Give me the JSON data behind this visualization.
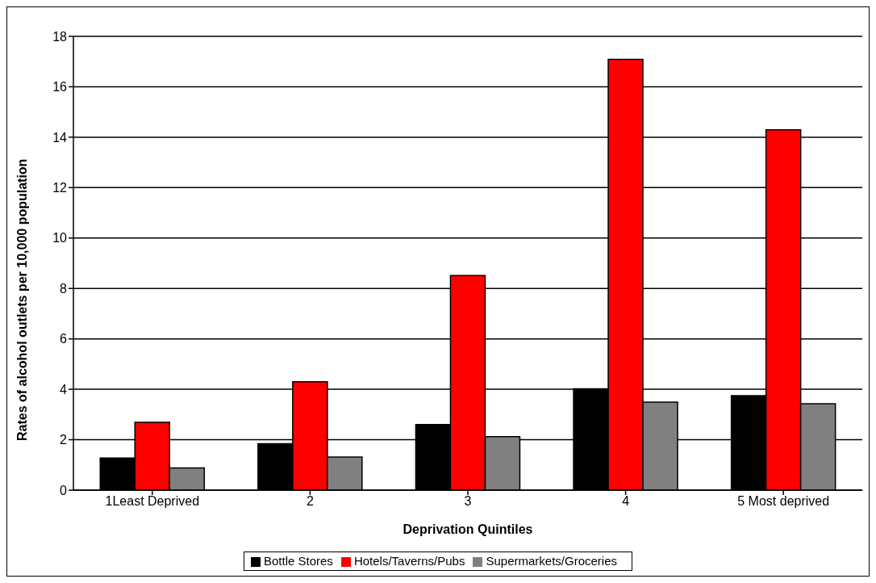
{
  "chart_data": {
    "type": "bar",
    "xlabel": "Deprivation Quintiles",
    "ylabel": "Rates of alcohol outlets per 10,000 population",
    "categories": [
      "1Least Deprived",
      "2",
      "3",
      "4",
      "5 Most deprived"
    ],
    "series": [
      {
        "name": "Bottle Stores",
        "color": "#000000",
        "values": [
          1.27,
          1.84,
          2.6,
          4.02,
          3.75
        ]
      },
      {
        "name": "Hotels/Taverns/Pubs",
        "color": "#ff0000",
        "values": [
          2.69,
          4.3,
          8.51,
          17.09,
          14.29
        ]
      },
      {
        "name": "Supermarkets/Groceries",
        "color": "#808080",
        "values": [
          0.88,
          1.31,
          2.12,
          3.49,
          3.43
        ]
      }
    ],
    "ylim": [
      0,
      18
    ],
    "yticks": [
      0,
      2,
      4,
      6,
      8,
      10,
      12,
      14,
      16,
      18
    ],
    "grid": "y",
    "legend": "bottom"
  }
}
